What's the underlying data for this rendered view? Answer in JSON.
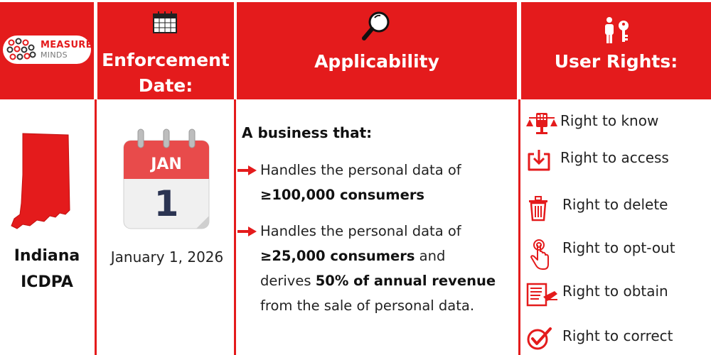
{
  "logo": {
    "line1": "MEASURE",
    "line2": "MINDS"
  },
  "headers": {
    "date_line1": "Enforcement",
    "date_line2": "Date:",
    "applicability": "Applicability",
    "rights": "User Rights:"
  },
  "state": {
    "name": "Indiana",
    "law": "ICDPA"
  },
  "calendar": {
    "month": "JAN",
    "day": "1"
  },
  "enforcement_date": "January 1, 2026",
  "applicability": {
    "lead": "A business that:",
    "item1": {
      "text": "Handles the personal data of",
      "bold": "≥100,000 consumers"
    },
    "item2": {
      "text1": "Handles the personal data of",
      "bold1": "≥25,000 consumers",
      "text2": " and",
      "text3": "derives ",
      "bold2": "50% of annual revenue",
      "text4": "from the sale of personal data."
    }
  },
  "rights": [
    {
      "label": "Right to know",
      "icon": "scales-icon"
    },
    {
      "label": "Right to access",
      "icon": "download-icon"
    },
    {
      "label": "Right to delete",
      "icon": "trash-icon"
    },
    {
      "label": "Right to opt-out",
      "icon": "tap-icon"
    },
    {
      "label": "Right to obtain",
      "icon": "document-icon"
    },
    {
      "label": "Right to correct",
      "icon": "checkmark-icon"
    }
  ],
  "colors": {
    "accent": "#e41b1c",
    "text": "#222222",
    "background": "#ffffff"
  }
}
